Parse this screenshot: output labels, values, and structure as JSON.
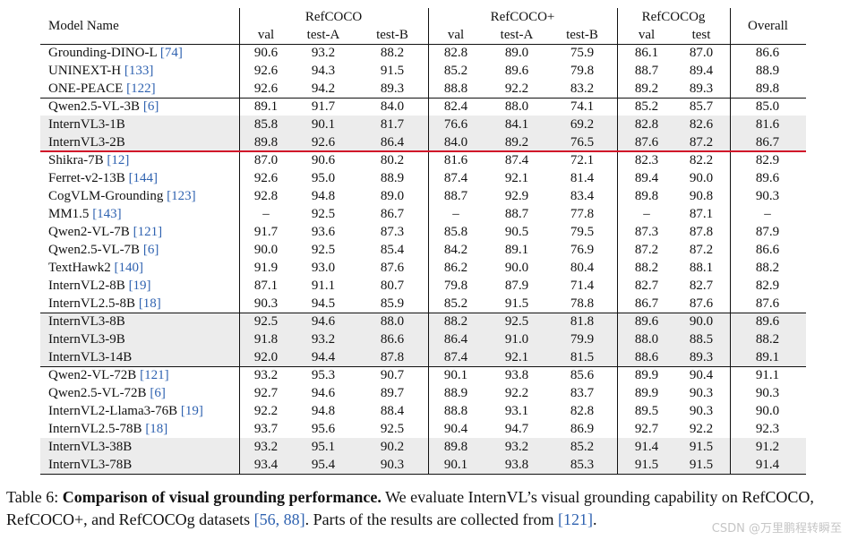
{
  "header": {
    "model": "Model Name",
    "groups": [
      "RefCOCO",
      "RefCOCO+",
      "RefCOCOg"
    ],
    "overall": "Overall",
    "subs": [
      "val",
      "test-A",
      "test-B",
      "val",
      "test-A",
      "test-B",
      "val",
      "test"
    ]
  },
  "rows": [
    {
      "name": "Grounding-DINO-L",
      "cite": "[74]",
      "vals": [
        "90.6",
        "93.2",
        "88.2",
        "82.8",
        "89.0",
        "75.9",
        "86.1",
        "87.0",
        "86.6"
      ],
      "shaded": false
    },
    {
      "name": "UNINEXT-H",
      "cite": "[133]",
      "vals": [
        "92.6",
        "94.3",
        "91.5",
        "85.2",
        "89.6",
        "79.8",
        "88.7",
        "89.4",
        "88.9"
      ],
      "shaded": false
    },
    {
      "name": "ONE-PEACE",
      "cite": "[122]",
      "vals": [
        "92.6",
        "94.2",
        "89.3",
        "88.8",
        "92.2",
        "83.2",
        "89.2",
        "89.3",
        "89.8"
      ],
      "shaded": false
    },
    {
      "name": "Qwen2.5-VL-3B",
      "cite": "[6]",
      "vals": [
        "89.1",
        "91.7",
        "84.0",
        "82.4",
        "88.0",
        "74.1",
        "85.2",
        "85.7",
        "85.0"
      ],
      "shaded": false
    },
    {
      "name": "InternVL3-1B",
      "cite": "",
      "vals": [
        "85.8",
        "90.1",
        "81.7",
        "76.6",
        "84.1",
        "69.2",
        "82.8",
        "82.6",
        "81.6"
      ],
      "shaded": true
    },
    {
      "name": "InternVL3-2B",
      "cite": "",
      "vals": [
        "89.8",
        "92.6",
        "86.4",
        "84.0",
        "89.2",
        "76.5",
        "87.6",
        "87.2",
        "86.7"
      ],
      "shaded": true
    },
    {
      "name": "Shikra-7B",
      "cite": "[12]",
      "vals": [
        "87.0",
        "90.6",
        "80.2",
        "81.6",
        "87.4",
        "72.1",
        "82.3",
        "82.2",
        "82.9"
      ],
      "shaded": false
    },
    {
      "name": "Ferret-v2-13B",
      "cite": "[144]",
      "vals": [
        "92.6",
        "95.0",
        "88.9",
        "87.4",
        "92.1",
        "81.4",
        "89.4",
        "90.0",
        "89.6"
      ],
      "shaded": false
    },
    {
      "name": "CogVLM-Grounding",
      "cite": "[123]",
      "vals": [
        "92.8",
        "94.8",
        "89.0",
        "88.7",
        "92.9",
        "83.4",
        "89.8",
        "90.8",
        "90.3"
      ],
      "shaded": false
    },
    {
      "name": "MM1.5",
      "cite": "[143]",
      "vals": [
        "–",
        "92.5",
        "86.7",
        "–",
        "88.7",
        "77.8",
        "–",
        "87.1",
        "–"
      ],
      "shaded": false
    },
    {
      "name": "Qwen2-VL-7B",
      "cite": "[121]",
      "vals": [
        "91.7",
        "93.6",
        "87.3",
        "85.8",
        "90.5",
        "79.5",
        "87.3",
        "87.8",
        "87.9"
      ],
      "shaded": false
    },
    {
      "name": "Qwen2.5-VL-7B",
      "cite": "[6]",
      "vals": [
        "90.0",
        "92.5",
        "85.4",
        "84.2",
        "89.1",
        "76.9",
        "87.2",
        "87.2",
        "86.6"
      ],
      "shaded": false
    },
    {
      "name": "TextHawk2",
      "cite": "[140]",
      "vals": [
        "91.9",
        "93.0",
        "87.6",
        "86.2",
        "90.0",
        "80.4",
        "88.2",
        "88.1",
        "88.2"
      ],
      "shaded": false
    },
    {
      "name": "InternVL2-8B",
      "cite": "[19]",
      "vals": [
        "87.1",
        "91.1",
        "80.7",
        "79.8",
        "87.9",
        "71.4",
        "82.7",
        "82.7",
        "82.9"
      ],
      "shaded": false
    },
    {
      "name": "InternVL2.5-8B",
      "cite": "[18]",
      "vals": [
        "90.3",
        "94.5",
        "85.9",
        "85.2",
        "91.5",
        "78.8",
        "86.7",
        "87.6",
        "87.6"
      ],
      "shaded": false
    },
    {
      "name": "InternVL3-8B",
      "cite": "",
      "vals": [
        "92.5",
        "94.6",
        "88.0",
        "88.2",
        "92.5",
        "81.8",
        "89.6",
        "90.0",
        "89.6"
      ],
      "shaded": true
    },
    {
      "name": "InternVL3-9B",
      "cite": "",
      "vals": [
        "91.8",
        "93.2",
        "86.6",
        "86.4",
        "91.0",
        "79.9",
        "88.0",
        "88.5",
        "88.2"
      ],
      "shaded": true
    },
    {
      "name": "InternVL3-14B",
      "cite": "",
      "vals": [
        "92.0",
        "94.4",
        "87.8",
        "87.4",
        "92.1",
        "81.5",
        "88.6",
        "89.3",
        "89.1"
      ],
      "shaded": true
    },
    {
      "name": "Qwen2-VL-72B",
      "cite": "[121]",
      "vals": [
        "93.2",
        "95.3",
        "90.7",
        "90.1",
        "93.8",
        "85.6",
        "89.9",
        "90.4",
        "91.1"
      ],
      "shaded": false
    },
    {
      "name": "Qwen2.5-VL-72B",
      "cite": "[6]",
      "vals": [
        "92.7",
        "94.6",
        "89.7",
        "88.9",
        "92.2",
        "83.7",
        "89.9",
        "90.3",
        "90.3"
      ],
      "shaded": false
    },
    {
      "name": "InternVL2-Llama3-76B",
      "cite": "[19]",
      "vals": [
        "92.2",
        "94.8",
        "88.4",
        "88.8",
        "93.1",
        "82.8",
        "89.5",
        "90.3",
        "90.0"
      ],
      "shaded": false
    },
    {
      "name": "InternVL2.5-78B",
      "cite": "[18]",
      "vals": [
        "93.7",
        "95.6",
        "92.5",
        "90.4",
        "94.7",
        "86.9",
        "92.7",
        "92.2",
        "92.3"
      ],
      "shaded": false
    },
    {
      "name": "InternVL3-38B",
      "cite": "",
      "vals": [
        "93.2",
        "95.1",
        "90.2",
        "89.8",
        "93.2",
        "85.2",
        "91.4",
        "91.5",
        "91.2"
      ],
      "shaded": true
    },
    {
      "name": "InternVL3-78B",
      "cite": "",
      "vals": [
        "93.4",
        "95.4",
        "90.3",
        "90.1",
        "93.8",
        "85.3",
        "91.5",
        "91.5",
        "91.4"
      ],
      "shaded": true
    }
  ],
  "caption": {
    "label": "Table 6:",
    "bold": "Comparison of visual grounding performance.",
    "text1": " We evaluate InternVL’s visual grounding capability on RefCOCO, RefCOCO+, and RefCOCOg datasets ",
    "cite1": "[56, 88]",
    "text2": ". Parts of the results are collected from ",
    "cite2": "[121]",
    "text3": "."
  },
  "watermark": "CSDN @万里鹏程转瞬至"
}
